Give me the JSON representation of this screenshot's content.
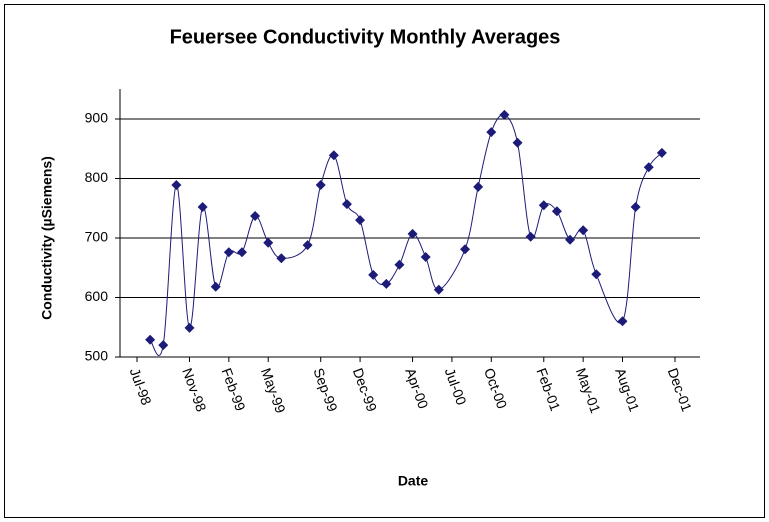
{
  "chart_data": {
    "type": "line",
    "title": "Feuersee Conductivity Monthly Averages",
    "x_label": "Date",
    "y_label": "Conductivity (µSiemens)",
    "x": [
      "1998-08",
      "1998-09",
      "1998-10",
      "1998-11",
      "1998-12",
      "1999-01",
      "1999-02",
      "1999-03",
      "1999-04",
      "1999-05",
      "1999-06",
      "1999-08",
      "1999-09",
      "1999-10",
      "1999-11",
      "1999-12",
      "2000-01",
      "2000-02",
      "2000-03",
      "2000-04",
      "2000-05",
      "2000-06",
      "2000-08",
      "2000-09",
      "2000-10",
      "2000-11",
      "2000-12",
      "2001-01",
      "2001-02",
      "2001-03",
      "2001-04",
      "2001-05",
      "2001-06",
      "2001-08",
      "2001-09",
      "2001-10",
      "2001-11"
    ],
    "series": [
      {
        "name": "Conductivity",
        "color": "#1c1c78",
        "values": [
          529,
          520,
          789,
          549,
          752,
          618,
          676,
          676,
          737,
          692,
          666,
          688,
          789,
          839,
          757,
          730,
          638,
          623,
          655,
          707,
          668,
          613,
          681,
          786,
          878,
          907,
          860,
          702,
          755,
          745,
          697,
          713,
          639,
          560,
          752,
          819,
          843
        ]
      }
    ],
    "xlim": [
      "1998-07",
      "2001-12"
    ],
    "xticks": [
      {
        "value": "1998-07",
        "label": "Jul-98"
      },
      {
        "value": "1998-11",
        "label": "Nov-98"
      },
      {
        "value": "1999-02",
        "label": "Feb-99"
      },
      {
        "value": "1999-05",
        "label": "May-99"
      },
      {
        "value": "1999-09",
        "label": "Sep-99"
      },
      {
        "value": "1999-12",
        "label": "Dec-99"
      },
      {
        "value": "2000-04",
        "label": "Apr-00"
      },
      {
        "value": "2000-07",
        "label": "Jul-00"
      },
      {
        "value": "2000-10",
        "label": "Oct-00"
      },
      {
        "value": "2001-02",
        "label": "Feb-01"
      },
      {
        "value": "2001-05",
        "label": "May-01"
      },
      {
        "value": "2001-08",
        "label": "Aug-01"
      },
      {
        "value": "2001-12",
        "label": "Dec-01"
      }
    ],
    "ylim": [
      500,
      900
    ],
    "yticks": [
      500,
      600,
      700,
      800,
      900
    ],
    "grid": true,
    "smooth": true
  }
}
